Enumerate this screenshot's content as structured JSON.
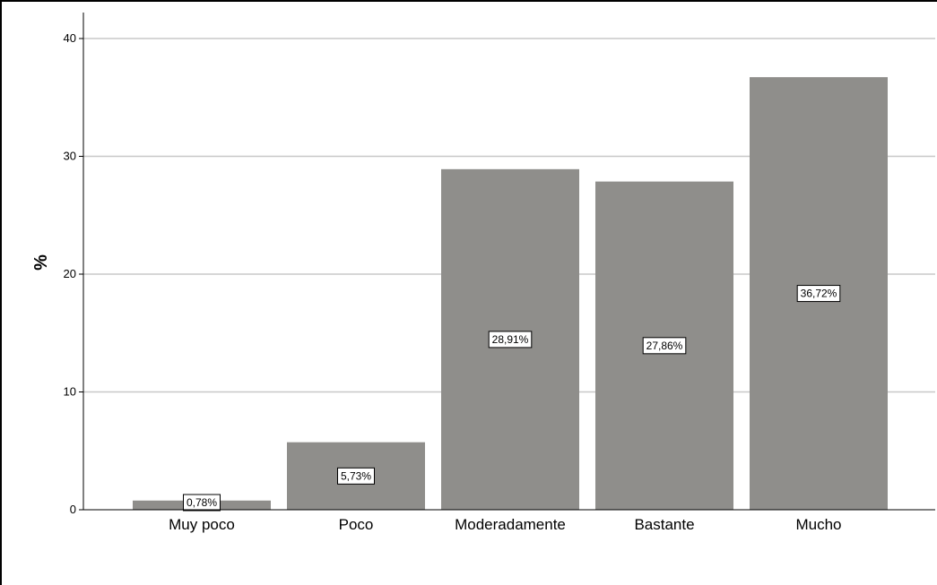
{
  "chart_data": {
    "type": "bar",
    "categories": [
      "Muy poco",
      "Poco",
      "Moderadamente",
      "Bastante",
      "Mucho"
    ],
    "values": [
      0.78,
      5.73,
      28.91,
      27.86,
      36.72
    ],
    "data_labels": [
      "0,78%",
      "5,73%",
      "28,91%",
      "27,86%",
      "36,72%"
    ],
    "ylabel": "%",
    "xlabel": "",
    "ylim": [
      0,
      40
    ],
    "yticks": [
      "0",
      "10",
      "20",
      "30",
      "40"
    ],
    "grid": true,
    "bar_color": "#8f8e8b"
  }
}
